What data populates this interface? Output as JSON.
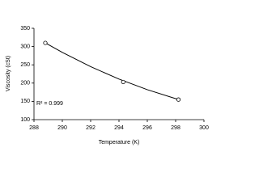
{
  "chart_data": {
    "type": "scatter",
    "x": [
      288.8,
      294.3,
      298.2
    ],
    "values": [
      310,
      203,
      155
    ],
    "marker_color": "#ffffff",
    "marker_edge": "#000000",
    "trendline": {
      "x": [
        288.8,
        290,
        292,
        294,
        296,
        298.2
      ],
      "values": [
        310,
        284,
        245,
        211,
        182,
        155
      ],
      "color": "#000000"
    },
    "annotation": "R² = 0.999",
    "xlabel": "Temperature (K)",
    "ylabel": "Viscosity (cSt)",
    "xlim": [
      288,
      300
    ],
    "ylim": [
      100,
      350
    ],
    "xticks": [
      288,
      290,
      292,
      294,
      296,
      298,
      300
    ],
    "yticks": [
      100,
      150,
      200,
      250,
      300,
      350
    ],
    "grid": false
  }
}
